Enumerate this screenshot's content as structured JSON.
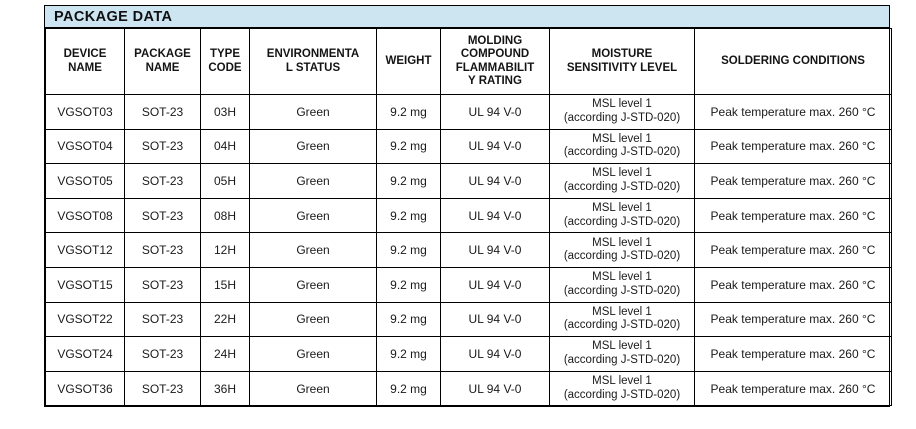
{
  "page": {
    "title": "PACKAGE DATA"
  },
  "colors": {
    "title_bar_bg": "#cde4f1",
    "border": "#000000",
    "text": "#1a1a1a"
  },
  "table": {
    "headers": [
      "DEVICE\nNAME",
      "PACKAGE\nNAME",
      "TYPE\nCODE",
      "ENVIRONMENTA\nL STATUS",
      "WEIGHT",
      "MOLDING\nCOMPOUND\nFLAMMABILIT\nY RATING",
      "MOISTURE\nSENSITIVITY LEVEL",
      "SOLDERING CONDITIONS"
    ],
    "rows": [
      {
        "device": "VGSOT03",
        "package": "SOT-23",
        "type_code": "03H",
        "env_status": "Green",
        "weight": "9.2 mg",
        "flammability": "UL 94 V-0",
        "msl": "MSL level 1\n(according J-STD-020)",
        "soldering": "Peak temperature max. 260 °C"
      },
      {
        "device": "VGSOT04",
        "package": "SOT-23",
        "type_code": "04H",
        "env_status": "Green",
        "weight": "9.2 mg",
        "flammability": "UL 94 V-0",
        "msl": "MSL level 1\n(according J-STD-020)",
        "soldering": "Peak temperature max. 260 °C"
      },
      {
        "device": "VGSOT05",
        "package": "SOT-23",
        "type_code": "05H",
        "env_status": "Green",
        "weight": "9.2 mg",
        "flammability": "UL 94 V-0",
        "msl": "MSL level 1\n(according J-STD-020)",
        "soldering": "Peak temperature max. 260 °C"
      },
      {
        "device": "VGSOT08",
        "package": "SOT-23",
        "type_code": "08H",
        "env_status": "Green",
        "weight": "9.2 mg",
        "flammability": "UL 94 V-0",
        "msl": "MSL level 1\n(according J-STD-020)",
        "soldering": "Peak temperature max. 260 °C"
      },
      {
        "device": "VGSOT12",
        "package": "SOT-23",
        "type_code": "12H",
        "env_status": "Green",
        "weight": "9.2 mg",
        "flammability": "UL 94 V-0",
        "msl": "MSL level 1\n(according J-STD-020)",
        "soldering": "Peak temperature max. 260 °C"
      },
      {
        "device": "VGSOT15",
        "package": "SOT-23",
        "type_code": "15H",
        "env_status": "Green",
        "weight": "9.2 mg",
        "flammability": "UL 94 V-0",
        "msl": "MSL level 1\n(according J-STD-020)",
        "soldering": "Peak temperature max. 260 °C"
      },
      {
        "device": "VGSOT22",
        "package": "SOT-23",
        "type_code": "22H",
        "env_status": "Green",
        "weight": "9.2 mg",
        "flammability": "UL 94 V-0",
        "msl": "MSL level 1\n(according J-STD-020)",
        "soldering": "Peak temperature max. 260 °C"
      },
      {
        "device": "VGSOT24",
        "package": "SOT-23",
        "type_code": "24H",
        "env_status": "Green",
        "weight": "9.2 mg",
        "flammability": "UL 94 V-0",
        "msl": "MSL level 1\n(according J-STD-020)",
        "soldering": "Peak temperature max. 260 °C"
      },
      {
        "device": "VGSOT36",
        "package": "SOT-23",
        "type_code": "36H",
        "env_status": "Green",
        "weight": "9.2 mg",
        "flammability": "UL 94 V-0",
        "msl": "MSL level 1\n(according J-STD-020)",
        "soldering": "Peak temperature max. 260 °C"
      }
    ]
  }
}
